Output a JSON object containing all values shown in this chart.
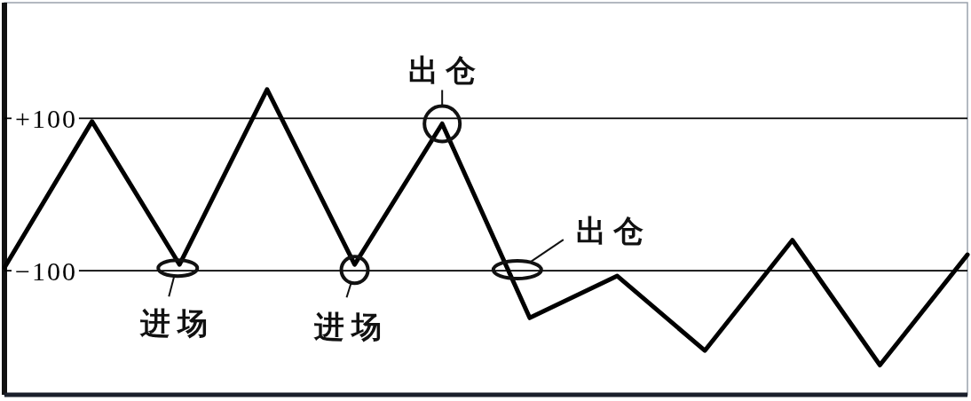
{
  "chart_data": {
    "type": "line",
    "categories": [
      null,
      null,
      null,
      null,
      null,
      null,
      null,
      null,
      null,
      null,
      null,
      null
    ],
    "ylim": [
      -263,
      252
    ],
    "yticks": [
      {
        "value": 100,
        "label": "+100"
      },
      {
        "value": -100,
        "label": "−100"
      }
    ],
    "tick_labels": "y",
    "grid": "y",
    "series": [
      {
        "color": "#000000",
        "values": [
          -96,
          96,
          -92,
          138,
          -92,
          93,
          -162,
          -107,
          -205,
          -60,
          -224,
          -79
        ]
      }
    ],
    "line_style": "solid",
    "annotations": [
      {
        "text": "进场",
        "y": -92
      },
      {
        "text": "进场",
        "y": -92
      },
      {
        "text": "出仓",
        "y": 93
      },
      {
        "text": "出仓",
        "y": -100
      }
    ]
  }
}
